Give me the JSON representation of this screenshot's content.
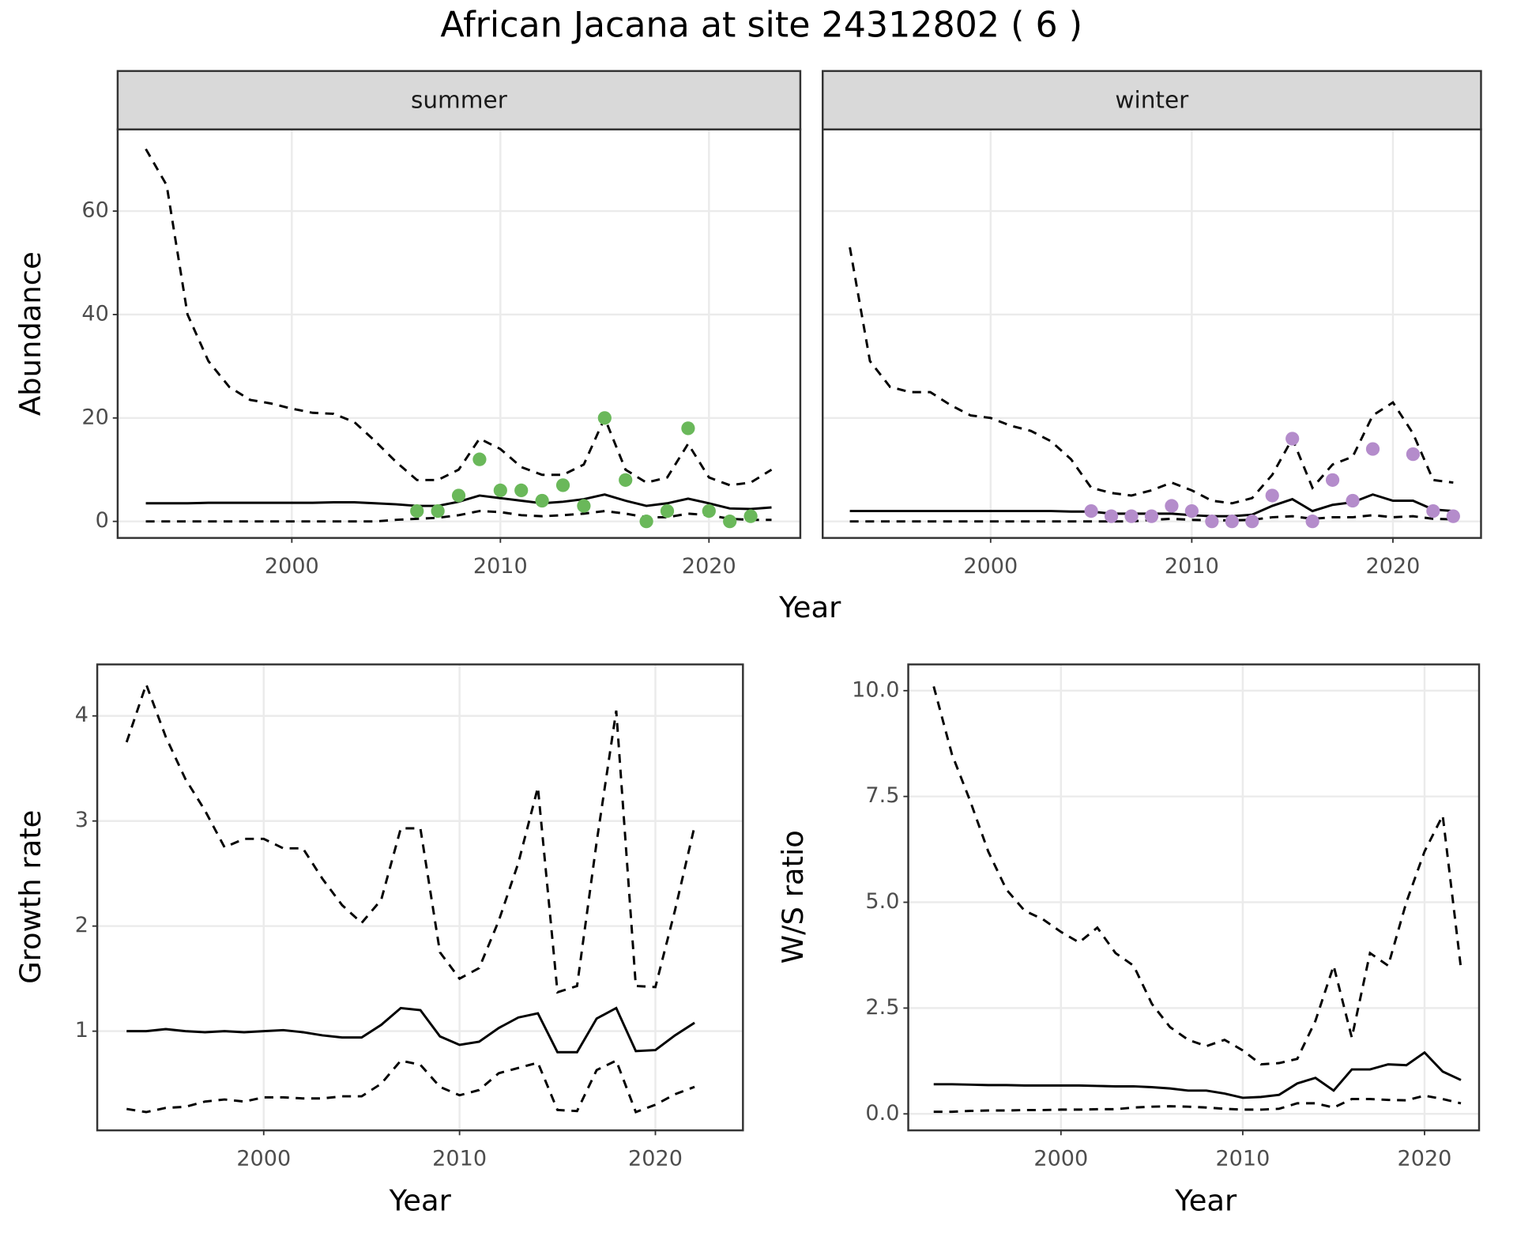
{
  "title": "African Jacana at site 24312802 ( 6 )",
  "chart_data": [
    {
      "type": "line",
      "title": "summer",
      "xlabel": "Year",
      "ylabel": "Abundance",
      "xlim": [
        1991.65,
        2024.38
      ],
      "ylim": [
        -3.2,
        75.8
      ],
      "xticks": [
        2000,
        2010,
        2020
      ],
      "yticks": [
        0,
        20,
        40,
        60
      ],
      "grid": true,
      "x": [
        1993,
        1994,
        1995,
        1996,
        1997,
        1998,
        1999,
        2000,
        2001,
        2002,
        2003,
        2004,
        2005,
        2006,
        2007,
        2008,
        2009,
        2010,
        2011,
        2012,
        2013,
        2014,
        2015,
        2016,
        2017,
        2018,
        2019,
        2020,
        2021,
        2022,
        2023
      ],
      "series": [
        {
          "color": "#000000",
          "dash": "solid",
          "values": [
            3.5,
            3.5,
            3.5,
            3.6,
            3.6,
            3.6,
            3.6,
            3.6,
            3.6,
            3.7,
            3.7,
            3.5,
            3.3,
            3.0,
            3.0,
            3.8,
            5.0,
            4.5,
            4.0,
            3.5,
            3.8,
            4.3,
            5.2,
            4.0,
            3.0,
            3.5,
            4.4,
            3.5,
            2.5,
            2.4,
            2.7
          ]
        },
        {
          "color": "#000000",
          "dash": "dashed",
          "values": [
            72,
            65,
            40,
            31,
            26,
            23.5,
            22.8,
            21.8,
            21,
            20.8,
            19.2,
            15.5,
            11.5,
            8,
            8,
            10,
            16,
            14,
            10.5,
            9,
            9,
            11,
            20,
            10,
            7.5,
            8.5,
            15,
            8.5,
            7,
            7.5,
            10
          ]
        },
        {
          "color": "#000000",
          "dash": "dashed",
          "values": [
            0,
            0,
            0,
            0,
            0,
            0,
            0,
            0,
            0,
            0,
            0,
            0,
            0.3,
            0.5,
            0.7,
            1.2,
            2,
            1.8,
            1.2,
            1,
            1.2,
            1.5,
            2,
            1.5,
            0.8,
            0.8,
            1.5,
            1.2,
            0.5,
            0.3,
            0.3
          ]
        },
        {
          "type": "scatter",
          "color": "#6ab85a",
          "x": [
            2006,
            2007,
            2008,
            2009,
            2010,
            2011,
            2012,
            2013,
            2014,
            2015,
            2016,
            2017,
            2018,
            2019,
            2020,
            2021,
            2022
          ],
          "values": [
            2,
            2,
            5,
            12,
            6,
            6,
            4,
            7,
            3,
            20,
            8,
            0,
            2,
            18,
            2,
            0,
            1
          ]
        }
      ]
    },
    {
      "type": "line",
      "title": "winter",
      "xlim": [
        1991.65,
        2024.38
      ],
      "ylim": [
        -3.2,
        75.8
      ],
      "xticks": [
        2000,
        2010,
        2020
      ],
      "yticks": [
        0,
        20,
        40,
        60
      ],
      "grid": true,
      "x": [
        1993,
        1994,
        1995,
        1996,
        1997,
        1998,
        1999,
        2000,
        2001,
        2002,
        2003,
        2004,
        2005,
        2006,
        2007,
        2008,
        2009,
        2010,
        2011,
        2012,
        2013,
        2014,
        2015,
        2016,
        2017,
        2018,
        2019,
        2020,
        2021,
        2022,
        2023
      ],
      "series": [
        {
          "color": "#000000",
          "dash": "solid",
          "values": [
            2,
            2,
            2,
            2,
            2,
            2,
            2,
            2,
            2,
            2,
            2,
            1.9,
            1.9,
            1.5,
            1.5,
            1.5,
            1.5,
            1.2,
            1,
            1,
            1.3,
            3,
            4.3,
            2,
            3.2,
            3.7,
            5.2,
            4,
            4,
            2.3,
            2
          ]
        },
        {
          "color": "#000000",
          "dash": "dashed",
          "values": [
            53,
            31,
            26,
            25,
            25,
            22.5,
            20.5,
            20,
            18.5,
            17.5,
            15.5,
            12,
            6.5,
            5.5,
            5,
            6,
            7.5,
            6,
            4,
            3.5,
            4.5,
            9,
            16,
            6.5,
            11,
            12.5,
            20.5,
            23,
            17,
            8,
            7.5
          ]
        },
        {
          "color": "#000000",
          "dash": "dashed",
          "values": [
            0,
            0,
            0,
            0,
            0,
            0,
            0,
            0,
            0,
            0,
            0,
            0,
            0,
            0,
            0,
            0.3,
            0.5,
            0.3,
            0.2,
            0.2,
            0.3,
            0.8,
            1,
            0.5,
            0.8,
            0.8,
            1.2,
            0.8,
            1,
            0.5,
            0.4
          ]
        },
        {
          "type": "scatter",
          "color": "#b48ccb",
          "x": [
            2005,
            2006,
            2007,
            2008,
            2009,
            2010,
            2011,
            2012,
            2013,
            2014,
            2015,
            2016,
            2017,
            2018,
            2019,
            2021,
            2022,
            2023
          ],
          "values": [
            2,
            1,
            1,
            1,
            3,
            2,
            0,
            0,
            0,
            5,
            16,
            0,
            8,
            4,
            14,
            13,
            2,
            1
          ]
        }
      ]
    },
    {
      "type": "line",
      "xlabel": "Year",
      "ylabel": "Growth rate",
      "xlim": [
        1991.5,
        2024.47
      ],
      "ylim": [
        0.056,
        4.49
      ],
      "xticks": [
        2000,
        2010,
        2020
      ],
      "yticks": [
        1,
        2,
        3,
        4
      ],
      "grid": true,
      "x": [
        1993,
        1994,
        1995,
        1996,
        1997,
        1998,
        1999,
        2000,
        2001,
        2002,
        2003,
        2004,
        2005,
        2006,
        2007,
        2008,
        2009,
        2010,
        2011,
        2012,
        2013,
        2014,
        2015,
        2016,
        2017,
        2018,
        2019,
        2020,
        2021,
        2022
      ],
      "series": [
        {
          "color": "#000000",
          "dash": "solid",
          "values": [
            1.0,
            1.0,
            1.02,
            1.0,
            0.99,
            1.0,
            0.99,
            1.0,
            1.01,
            0.99,
            0.96,
            0.94,
            0.94,
            1.06,
            1.22,
            1.2,
            0.95,
            0.87,
            0.9,
            1.03,
            1.13,
            1.17,
            0.8,
            0.8,
            1.12,
            1.22,
            0.81,
            0.82,
            0.96,
            1.08
          ]
        },
        {
          "color": "#000000",
          "dash": "dashed",
          "values": [
            3.75,
            4.3,
            3.8,
            3.4,
            3.1,
            2.75,
            2.83,
            2.83,
            2.74,
            2.74,
            2.45,
            2.2,
            2.03,
            2.25,
            2.93,
            2.93,
            1.75,
            1.5,
            1.6,
            2.05,
            2.6,
            3.32,
            1.37,
            1.43,
            2.8,
            4.05,
            1.43,
            1.42,
            2.15,
            2.95
          ]
        },
        {
          "color": "#000000",
          "dash": "dashed",
          "values": [
            0.26,
            0.23,
            0.27,
            0.28,
            0.33,
            0.35,
            0.33,
            0.37,
            0.37,
            0.36,
            0.36,
            0.38,
            0.38,
            0.5,
            0.72,
            0.68,
            0.47,
            0.39,
            0.44,
            0.6,
            0.65,
            0.7,
            0.25,
            0.24,
            0.63,
            0.72,
            0.23,
            0.3,
            0.4,
            0.47
          ]
        }
      ]
    },
    {
      "type": "line",
      "xlabel": "Year",
      "ylabel": "W/S ratio",
      "xlim": [
        1991.6,
        2023.0
      ],
      "ylim": [
        -0.39,
        10.62
      ],
      "xticks": [
        2000,
        2010,
        2020
      ],
      "yticks": [
        {
          "value": 0,
          "label": "0.0"
        },
        {
          "value": 2.5,
          "label": "2.5"
        },
        {
          "value": 5,
          "label": "5.0"
        },
        {
          "value": 7.5,
          "label": "7.5"
        },
        {
          "value": 10,
          "label": "10.0"
        }
      ],
      "grid": true,
      "x": [
        1993,
        1994,
        1995,
        1996,
        1997,
        1998,
        1999,
        2000,
        2001,
        2002,
        2003,
        2004,
        2005,
        2006,
        2007,
        2008,
        2009,
        2010,
        2011,
        2012,
        2013,
        2014,
        2015,
        2016,
        2017,
        2018,
        2019,
        2020,
        2021,
        2022
      ],
      "series": [
        {
          "color": "#000000",
          "dash": "solid",
          "values": [
            0.7,
            0.7,
            0.69,
            0.68,
            0.68,
            0.67,
            0.67,
            0.67,
            0.67,
            0.66,
            0.65,
            0.65,
            0.63,
            0.6,
            0.55,
            0.55,
            0.48,
            0.38,
            0.4,
            0.45,
            0.72,
            0.85,
            0.55,
            1.05,
            1.05,
            1.17,
            1.15,
            1.45,
            1.0,
            0.8
          ]
        },
        {
          "color": "#000000",
          "dash": "dashed",
          "values": [
            10.1,
            8.5,
            7.4,
            6.2,
            5.3,
            4.8,
            4.6,
            4.3,
            4.05,
            4.4,
            3.8,
            3.5,
            2.6,
            2.05,
            1.75,
            1.6,
            1.75,
            1.5,
            1.17,
            1.2,
            1.3,
            2.2,
            3.5,
            1.8,
            3.8,
            3.5,
            5.0,
            6.2,
            7.05,
            3.45
          ]
        },
        {
          "color": "#000000",
          "dash": "dashed",
          "values": [
            0.05,
            0.05,
            0.07,
            0.08,
            0.08,
            0.09,
            0.09,
            0.1,
            0.1,
            0.11,
            0.11,
            0.15,
            0.17,
            0.18,
            0.17,
            0.15,
            0.12,
            0.1,
            0.1,
            0.12,
            0.25,
            0.25,
            0.15,
            0.35,
            0.35,
            0.33,
            0.32,
            0.43,
            0.35,
            0.25
          ]
        }
      ]
    }
  ]
}
